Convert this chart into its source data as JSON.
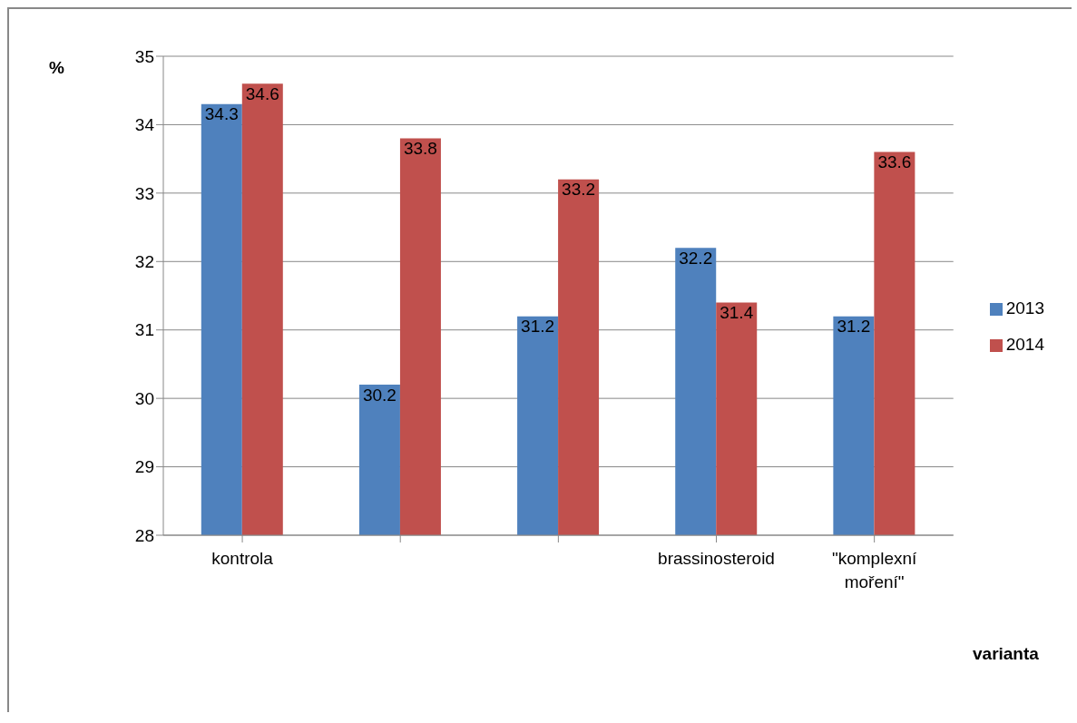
{
  "chart_data": {
    "type": "bar",
    "ylabel": "%",
    "xlabel": "varianta",
    "categories": [
      "kontrola",
      null,
      null,
      "brassinosteroid",
      "\"komplexní moření\""
    ],
    "series": [
      {
        "name": "2013",
        "color": "#4f81bd",
        "values": [
          34.3,
          30.2,
          31.2,
          32.2,
          31.2
        ]
      },
      {
        "name": "2014",
        "color": "#c0504d",
        "values": [
          34.6,
          33.8,
          33.2,
          31.4,
          33.6
        ]
      }
    ],
    "ylim": [
      28,
      35
    ],
    "yticks": [
      28,
      29,
      30,
      31,
      32,
      33,
      34,
      35
    ],
    "grid": "y",
    "legend": "right",
    "data_labels": true
  }
}
